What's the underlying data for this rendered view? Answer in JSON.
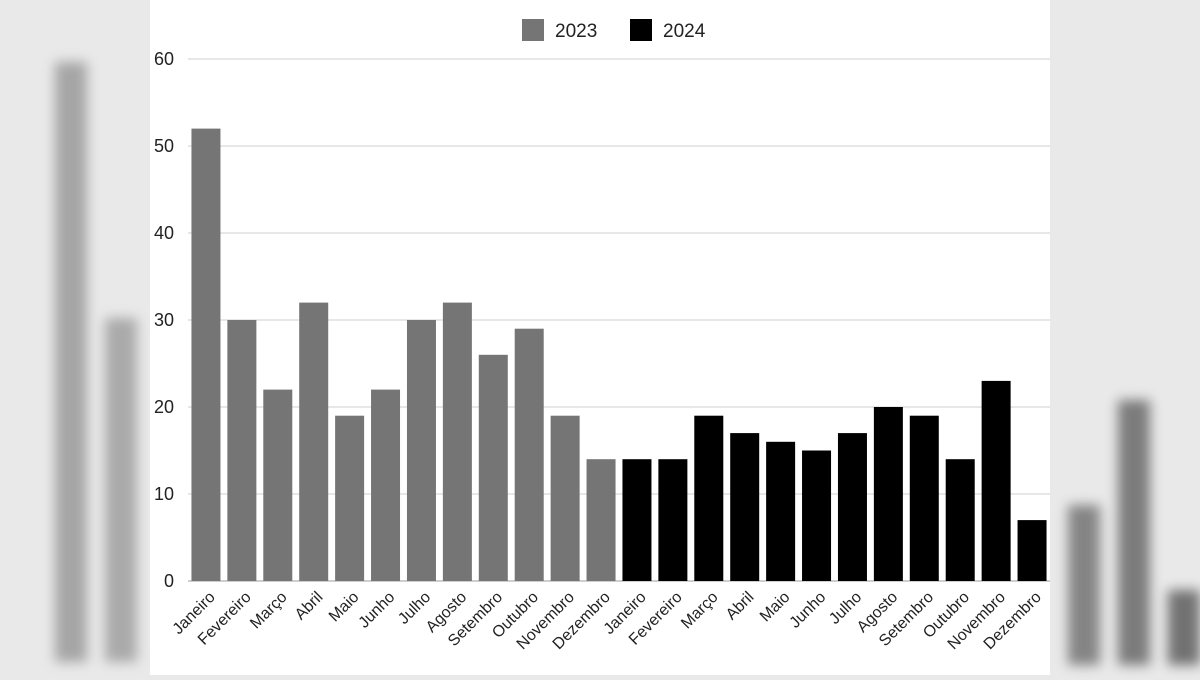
{
  "chart_data": {
    "type": "bar",
    "title": "",
    "xlabel": "",
    "ylabel": "",
    "ylim": [
      0,
      60
    ],
    "yticks": [
      0,
      10,
      20,
      30,
      40,
      50,
      60
    ],
    "grid": true,
    "legend_position": "top-center",
    "categories": [
      "Janeiro",
      "Fevereiro",
      "Março",
      "Abril",
      "Maio",
      "Junho",
      "Julho",
      "Agosto",
      "Setembro",
      "Outubro",
      "Novembro",
      "Dezembro",
      "Janeiro",
      "Fevereiro",
      "Março",
      "Abril",
      "Maio",
      "Junho",
      "Julho",
      "Agosto",
      "Setembro",
      "Outubro",
      "Novembro",
      "Dezembro"
    ],
    "series": [
      {
        "name": "2023",
        "color": "#757575",
        "values": [
          52,
          30,
          22,
          32,
          19,
          22,
          30,
          32,
          26,
          29,
          19,
          14,
          null,
          null,
          null,
          null,
          null,
          null,
          null,
          null,
          null,
          null,
          null,
          null
        ]
      },
      {
        "name": "2024",
        "color": "#000000",
        "values": [
          null,
          null,
          null,
          null,
          null,
          null,
          null,
          null,
          null,
          null,
          null,
          null,
          14,
          14,
          19,
          17,
          16,
          15,
          17,
          20,
          19,
          14,
          23,
          7
        ]
      }
    ]
  }
}
